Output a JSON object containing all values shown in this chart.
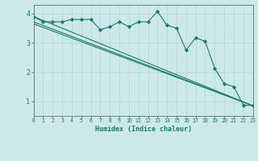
{
  "xlabel": "Humidex (Indice chaleur)",
  "xlim": [
    0,
    23
  ],
  "ylim": [
    0.5,
    4.3
  ],
  "yticks": [
    1,
    2,
    3,
    4
  ],
  "xticks": [
    0,
    1,
    2,
    3,
    4,
    5,
    6,
    7,
    8,
    9,
    10,
    11,
    12,
    13,
    14,
    15,
    16,
    17,
    18,
    19,
    20,
    21,
    22,
    23
  ],
  "bg_color": "#cce8e8",
  "grid_color": "#aad4d4",
  "line_color": "#1a7a6e",
  "line1_x": [
    0,
    1,
    2,
    3,
    4,
    5,
    6,
    7,
    8,
    9,
    10,
    11,
    12,
    13,
    14,
    15,
    16,
    17,
    18,
    19,
    20,
    21,
    22,
    23
  ],
  "line1_y": [
    3.9,
    3.72,
    3.72,
    3.72,
    3.8,
    3.8,
    3.8,
    3.45,
    3.55,
    3.72,
    3.55,
    3.72,
    3.72,
    4.07,
    3.6,
    3.5,
    2.75,
    3.18,
    3.05,
    2.13,
    1.6,
    1.5,
    0.87,
    0.85
  ],
  "line2_x": [
    0,
    23
  ],
  "line2_y": [
    3.9,
    0.85
  ],
  "line3_x": [
    0,
    23
  ],
  "line3_y": [
    3.72,
    0.85
  ],
  "line4_x": [
    0,
    23
  ],
  "line4_y": [
    3.65,
    0.85
  ]
}
